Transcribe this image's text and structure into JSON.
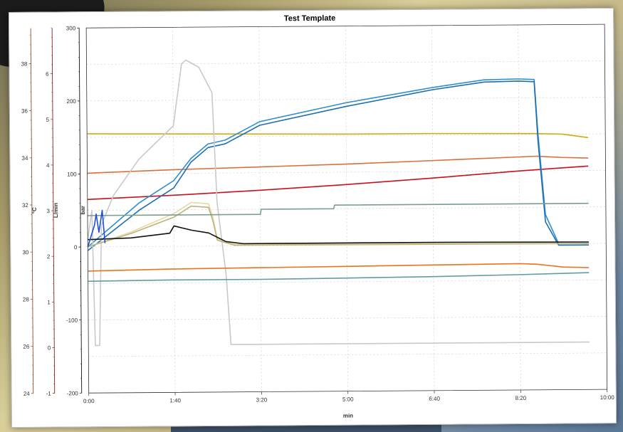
{
  "chart_data": {
    "type": "line",
    "title": "Test Template",
    "xlabel": "min",
    "x_ticks": [
      "0:00",
      "1:40",
      "3:20",
      "5:00",
      "6:40",
      "8:20",
      "10:00"
    ],
    "xlim": [
      0,
      600
    ],
    "grid": true,
    "axes": [
      {
        "unit": "°C",
        "color": "#8a4f2a",
        "ticks": [
          "24",
          "26",
          "28",
          "30",
          "32",
          "34",
          "36",
          "38"
        ],
        "range": [
          24,
          39.5
        ]
      },
      {
        "unit": "L/min",
        "color": "#8b1c1c",
        "ticks": [
          "-1",
          "0",
          "1",
          "2",
          "3",
          "4",
          "5",
          "6"
        ],
        "range": [
          -1,
          7
        ]
      },
      {
        "unit": "bar",
        "color": "#111111",
        "ticks": [
          "-200",
          "-100",
          "0",
          "100",
          "200",
          "300"
        ],
        "range": [
          -200,
          300
        ]
      }
    ],
    "series": [
      {
        "color": "#d4a90f",
        "x": [
          0,
          200,
          300,
          400,
          520,
          550,
          580
        ],
        "y": [
          155,
          153,
          152,
          152,
          151,
          150,
          145
        ]
      },
      {
        "color": "#d9703a",
        "x": [
          0,
          100,
          200,
          300,
          400,
          520,
          550,
          580
        ],
        "y": [
          101,
          105,
          108,
          111,
          115,
          120,
          118,
          117
        ]
      },
      {
        "color": "#c8101e",
        "x": [
          0,
          100,
          200,
          300,
          400,
          500,
          580
        ],
        "y": [
          65,
          70,
          76,
          83,
          91,
          100,
          106
        ]
      },
      {
        "color": "#2d8fd0",
        "x": [
          0,
          60,
          100,
          120,
          140,
          160,
          200,
          300,
          400,
          460,
          500,
          518,
          522,
          530,
          545,
          580
        ],
        "y": [
          0,
          60,
          90,
          120,
          140,
          145,
          170,
          195,
          215,
          225,
          226,
          225,
          150,
          40,
          0,
          0
        ]
      },
      {
        "color": "#1f6fb0",
        "x": [
          0,
          60,
          100,
          120,
          140,
          160,
          200,
          300,
          400,
          460,
          500,
          518,
          522,
          530,
          545,
          580
        ],
        "y": [
          -5,
          50,
          80,
          115,
          135,
          140,
          165,
          190,
          212,
          222,
          223,
          222,
          140,
          30,
          -2,
          -2
        ]
      },
      {
        "color": "#c9c9c9",
        "x": [
          0,
          5,
          8,
          13,
          16,
          30,
          60,
          100,
          110,
          115,
          130,
          145,
          150,
          160,
          165,
          170,
          175,
          580
        ],
        "y": [
          10,
          50,
          -135,
          -135,
          30,
          70,
          120,
          165,
          250,
          255,
          245,
          210,
          60,
          -40,
          -135,
          -135,
          -135,
          -135
        ]
      },
      {
        "color": "#e6d9a8",
        "x": [
          0,
          50,
          100,
          120,
          140,
          145,
          150,
          170,
          580
        ],
        "y": [
          0,
          20,
          45,
          60,
          58,
          40,
          10,
          2,
          0
        ]
      },
      {
        "color": "#bfb37a",
        "x": [
          0,
          50,
          100,
          120,
          140,
          145,
          150,
          170,
          580
        ],
        "y": [
          0,
          18,
          40,
          55,
          53,
          35,
          8,
          1,
          0
        ]
      },
      {
        "color": "#111111",
        "x": [
          0,
          50,
          95,
          100,
          120,
          140,
          160,
          180,
          250,
          400,
          580
        ],
        "y": [
          10,
          12,
          18,
          28,
          22,
          18,
          6,
          3,
          3,
          3,
          2
        ]
      },
      {
        "color": "#e9731f",
        "x": [
          0,
          100,
          200,
          300,
          400,
          500,
          520,
          550,
          580
        ],
        "y": [
          -33,
          -31,
          -30,
          -29,
          -28,
          -27,
          -28,
          -32,
          -33
        ]
      },
      {
        "color": "#5f9ea0",
        "x": [
          0,
          100,
          200,
          300,
          400,
          500,
          580
        ],
        "y": [
          -47,
          -46,
          -46,
          -45,
          -44,
          -42,
          -40
        ]
      },
      {
        "color": "#7a9d8f",
        "x": [
          0,
          200,
          201,
          285,
          286,
          580
        ],
        "y": [
          43,
          43,
          50,
          50,
          55,
          55
        ]
      },
      {
        "color": "#1f4fd6",
        "x": [
          0,
          8,
          10,
          13,
          17,
          20
        ],
        "y": [
          0,
          30,
          45,
          20,
          50,
          5
        ]
      }
    ]
  }
}
